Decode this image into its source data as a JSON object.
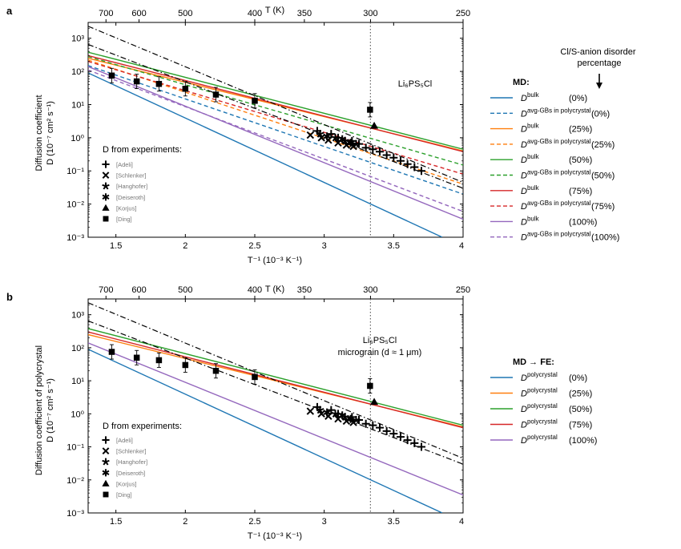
{
  "colors": {
    "0%": "#1f77b4",
    "25%": "#ff7f0e",
    "50%": "#2ca02c",
    "75%": "#d62728",
    "100%": "#9467bd",
    "black": "#000000",
    "dotted": "#666666"
  },
  "panels": [
    {
      "id": "a",
      "panel_label": "a",
      "top_axis_label": "T (K)",
      "bottom_axis_label": "T⁻¹ (10⁻³ K⁻¹)",
      "ylabel_line1": "Diffusion coefficient",
      "ylabel_line2": "D (10⁻⁷ cm² s⁻¹)",
      "annotation_lines": [
        "Li₆PS₅Cl"
      ],
      "exp_title": "D from experiments:",
      "exp_legend": [
        {
          "marker": "plus",
          "label": "[Adeli]"
        },
        {
          "marker": "cross",
          "label": "[Schlenker]"
        },
        {
          "marker": "star5",
          "label": "[Hanghofer]"
        },
        {
          "marker": "star6",
          "label": "[Deiseroth]"
        },
        {
          "marker": "triangle",
          "label": "[Korjus]"
        },
        {
          "marker": "square",
          "label": "[Ding]"
        }
      ],
      "legend_note": "Cl/S-anion disorder percentage",
      "legend_title": "MD:",
      "legend_entries": [
        {
          "base": "D",
          "sup": "bulk",
          "pct": "(0%)",
          "color_key": "0%",
          "dash": false
        },
        {
          "base": "D",
          "sup": "avg-GBs in polycrystal",
          "pct": "(0%)",
          "color_key": "0%",
          "dash": true
        },
        {
          "base": "D",
          "sup": "bulk",
          "pct": "(25%)",
          "color_key": "25%",
          "dash": false
        },
        {
          "base": "D",
          "sup": "avg-GBs in polycrystal",
          "pct": "(25%)",
          "color_key": "25%",
          "dash": true
        },
        {
          "base": "D",
          "sup": "bulk",
          "pct": "(50%)",
          "color_key": "50%",
          "dash": false
        },
        {
          "base": "D",
          "sup": "avg-GBs in polycrystal",
          "pct": "(50%)",
          "color_key": "50%",
          "dash": true
        },
        {
          "base": "D",
          "sup": "bulk",
          "pct": "(75%)",
          "color_key": "75%",
          "dash": false
        },
        {
          "base": "D",
          "sup": "avg-GBs in polycrystal",
          "pct": "(75%)",
          "color_key": "75%",
          "dash": true
        },
        {
          "base": "D",
          "sup": "bulk",
          "pct": "(100%)",
          "color_key": "100%",
          "dash": false
        },
        {
          "base": "D",
          "sup": "avg-GBs in polycrystal",
          "pct": "(100%)",
          "color_key": "100%",
          "dash": true
        }
      ]
    },
    {
      "id": "b",
      "panel_label": "b",
      "top_axis_label": "T (K)",
      "bottom_axis_label": "T⁻¹ (10⁻³ K⁻¹)",
      "ylabel_line1": "Diffusion coefficient of polycrystal",
      "ylabel_line2": "D (10⁻⁷ cm² s⁻¹)",
      "annotation_lines": [
        "Li₆PS₅Cl",
        "micrograin (d ≈ 1 μm)"
      ],
      "exp_title": "D from experiments:",
      "exp_legend": [
        {
          "marker": "plus",
          "label": "[Adeli]"
        },
        {
          "marker": "cross",
          "label": "[Schlenker]"
        },
        {
          "marker": "star5",
          "label": "[Hanghofer]"
        },
        {
          "marker": "star6",
          "label": "[Deiseroth]"
        },
        {
          "marker": "triangle",
          "label": "[Korjus]"
        },
        {
          "marker": "square",
          "label": "[Ding]"
        }
      ],
      "legend_note": "",
      "legend_title": "MD → FE:",
      "legend_entries": [
        {
          "base": "D",
          "sup": "polycrystal",
          "pct": "(0%)",
          "color_key": "0%",
          "dash": false
        },
        {
          "base": "D",
          "sup": "polycrystal",
          "pct": "(25%)",
          "color_key": "25%",
          "dash": false
        },
        {
          "base": "D",
          "sup": "polycrystal",
          "pct": "(50%)",
          "color_key": "50%",
          "dash": false
        },
        {
          "base": "D",
          "sup": "polycrystal",
          "pct": "(75%)",
          "color_key": "75%",
          "dash": false
        },
        {
          "base": "D",
          "sup": "polycrystal",
          "pct": "(100%)",
          "color_key": "100%",
          "dash": false
        }
      ]
    }
  ],
  "chart_data": [
    {
      "panel": "a",
      "type": "line",
      "xscale": "linear",
      "yscale": "log",
      "xlim": [
        1.3,
        4.0
      ],
      "ylim": [
        0.001,
        3000
      ],
      "xticks": [
        1.5,
        2,
        2.5,
        3,
        3.5,
        4
      ],
      "xtick_labels": [
        "1.5",
        "2",
        "2.5",
        "3",
        "3.5",
        "4"
      ],
      "yticks": [
        0.001,
        0.01,
        0.1,
        1,
        10,
        100,
        1000
      ],
      "ytick_labels": [
        "10⁻³",
        "10⁻²",
        "10⁻¹",
        "10⁰",
        "10¹",
        "10²",
        "10³"
      ],
      "top_ticks_T": [
        700,
        600,
        500,
        400,
        350,
        300,
        250
      ],
      "top_tick_labels": [
        "700",
        "600",
        "500",
        "400",
        "350",
        "300",
        "250"
      ],
      "vline_x": 3.333,
      "series": [
        {
          "name": "D bulk (0%)",
          "color_key": "0%",
          "dash": false,
          "x": [
            1.3,
            3.85
          ],
          "y": [
            90,
            0.001
          ]
        },
        {
          "name": "D avg-GBs in polycrystal (0%)",
          "color_key": "0%",
          "dash": true,
          "x": [
            1.3,
            4.0
          ],
          "y": [
            150,
            0.02
          ]
        },
        {
          "name": "D bulk (25%)",
          "color_key": "25%",
          "dash": false,
          "x": [
            1.3,
            4.0
          ],
          "y": [
            250,
            0.4
          ]
        },
        {
          "name": "D avg-GBs in polycrystal (25%)",
          "color_key": "25%",
          "dash": true,
          "x": [
            1.3,
            4.0
          ],
          "y": [
            220,
            0.04
          ]
        },
        {
          "name": "D bulk (50%)",
          "color_key": "50%",
          "dash": false,
          "x": [
            1.3,
            4.0
          ],
          "y": [
            380,
            0.45
          ]
        },
        {
          "name": "D avg-GBs in polycrystal (50%)",
          "color_key": "50%",
          "dash": true,
          "x": [
            1.3,
            4.0
          ],
          "y": [
            280,
            0.15
          ]
        },
        {
          "name": "D bulk (75%)",
          "color_key": "75%",
          "dash": false,
          "x": [
            1.3,
            4.0
          ],
          "y": [
            300,
            0.38
          ]
        },
        {
          "name": "D avg-GBs in polycrystal (75%)",
          "color_key": "75%",
          "dash": true,
          "x": [
            1.3,
            4.0
          ],
          "y": [
            200,
            0.08
          ]
        },
        {
          "name": "D bulk (100%)",
          "color_key": "100%",
          "dash": false,
          "x": [
            1.3,
            4.0
          ],
          "y": [
            140,
            0.0035
          ]
        },
        {
          "name": "D avg-GBs in polycrystal (100%)",
          "color_key": "100%",
          "dash": true,
          "x": [
            1.3,
            4.0
          ],
          "y": [
            110,
            0.006
          ]
        },
        {
          "name": "experimental fit 1",
          "color_key": "black",
          "dash": "dashdot",
          "x": [
            1.3,
            4.0
          ],
          "y": [
            2300,
            0.045
          ]
        },
        {
          "name": "experimental fit 2",
          "color_key": "black",
          "dash": "dashdot",
          "x": [
            1.3,
            4.0
          ],
          "y": [
            650,
            0.03
          ]
        }
      ],
      "points": {
        "Adeli": {
          "x": [
            2.95,
            3.05,
            3.1,
            3.2,
            3.25,
            3.3,
            3.35,
            3.4,
            3.45,
            3.5,
            3.55,
            3.6,
            3.65,
            3.7
          ],
          "y": [
            1.6,
            1.3,
            1.0,
            0.8,
            0.65,
            0.5,
            0.45,
            0.38,
            0.3,
            0.25,
            0.2,
            0.16,
            0.13,
            0.1
          ]
        },
        "Schlenker": {
          "x": [
            2.9,
            2.98,
            3.03,
            3.1,
            3.16,
            3.21
          ],
          "y": [
            1.2,
            1.0,
            0.85,
            0.7,
            0.6,
            0.55
          ]
        },
        "Hanghofer": {
          "x": [
            2.97,
            3.08,
            3.15,
            3.23
          ],
          "y": [
            1.3,
            1.0,
            0.8,
            0.65
          ]
        },
        "Deiseroth": {
          "x": [
            3.02,
            3.13,
            3.19
          ],
          "y": [
            1.1,
            0.9,
            0.7
          ]
        },
        "Korjus": {
          "x": [
            3.36
          ],
          "y": [
            2.3
          ]
        },
        "Ding": {
          "x": [
            1.47,
            1.65,
            1.81,
            2.0,
            2.22,
            2.5,
            3.33
          ],
          "y": [
            75,
            50,
            42,
            30,
            20,
            13,
            7
          ]
        }
      }
    },
    {
      "panel": "b",
      "type": "line",
      "xscale": "linear",
      "yscale": "log",
      "xlim": [
        1.3,
        4.0
      ],
      "ylim": [
        0.001,
        3000
      ],
      "xticks": [
        1.5,
        2,
        2.5,
        3,
        3.5,
        4
      ],
      "xtick_labels": [
        "1.5",
        "2",
        "2.5",
        "3",
        "3.5",
        "4"
      ],
      "yticks": [
        0.001,
        0.01,
        0.1,
        1,
        10,
        100,
        1000
      ],
      "ytick_labels": [
        "10⁻³",
        "10⁻²",
        "10⁻¹",
        "10⁰",
        "10¹",
        "10²",
        "10³"
      ],
      "top_ticks_T": [
        700,
        600,
        500,
        400,
        350,
        300,
        250
      ],
      "top_tick_labels": [
        "700",
        "600",
        "500",
        "400",
        "350",
        "300",
        "250"
      ],
      "vline_x": 3.333,
      "series": [
        {
          "name": "D polycrystal (0%)",
          "color_key": "0%",
          "dash": false,
          "x": [
            1.3,
            3.85
          ],
          "y": [
            90,
            0.001
          ]
        },
        {
          "name": "D polycrystal (25%)",
          "color_key": "25%",
          "dash": false,
          "x": [
            1.3,
            4.0
          ],
          "y": [
            250,
            0.4
          ]
        },
        {
          "name": "D polycrystal (50%)",
          "color_key": "50%",
          "dash": false,
          "x": [
            1.3,
            4.0
          ],
          "y": [
            380,
            0.45
          ]
        },
        {
          "name": "D polycrystal (75%)",
          "color_key": "75%",
          "dash": false,
          "x": [
            1.3,
            4.0
          ],
          "y": [
            300,
            0.38
          ]
        },
        {
          "name": "D polycrystal (100%)",
          "color_key": "100%",
          "dash": false,
          "x": [
            1.3,
            4.0
          ],
          "y": [
            140,
            0.0035
          ]
        },
        {
          "name": "experimental fit 1",
          "color_key": "black",
          "dash": "dashdot",
          "x": [
            1.3,
            4.0
          ],
          "y": [
            2300,
            0.045
          ]
        },
        {
          "name": "experimental fit 2",
          "color_key": "black",
          "dash": "dashdot",
          "x": [
            1.3,
            4.0
          ],
          "y": [
            650,
            0.03
          ]
        }
      ],
      "points": {
        "Adeli": {
          "x": [
            2.95,
            3.05,
            3.1,
            3.2,
            3.25,
            3.3,
            3.35,
            3.4,
            3.45,
            3.5,
            3.55,
            3.6,
            3.65,
            3.7
          ],
          "y": [
            1.6,
            1.3,
            1.0,
            0.8,
            0.65,
            0.5,
            0.45,
            0.38,
            0.3,
            0.25,
            0.2,
            0.16,
            0.13,
            0.1
          ]
        },
        "Schlenker": {
          "x": [
            2.9,
            2.98,
            3.03,
            3.1,
            3.16,
            3.21
          ],
          "y": [
            1.2,
            1.0,
            0.85,
            0.7,
            0.6,
            0.55
          ]
        },
        "Hanghofer": {
          "x": [
            2.97,
            3.08,
            3.15,
            3.23
          ],
          "y": [
            1.3,
            1.0,
            0.8,
            0.65
          ]
        },
        "Deiseroth": {
          "x": [
            3.02,
            3.13,
            3.19
          ],
          "y": [
            1.1,
            0.9,
            0.7
          ]
        },
        "Korjus": {
          "x": [
            3.36
          ],
          "y": [
            2.3
          ]
        },
        "Ding": {
          "x": [
            1.47,
            1.65,
            1.81,
            2.0,
            2.22,
            2.5,
            3.33
          ],
          "y": [
            75,
            50,
            42,
            30,
            20,
            13,
            7
          ]
        }
      }
    }
  ]
}
